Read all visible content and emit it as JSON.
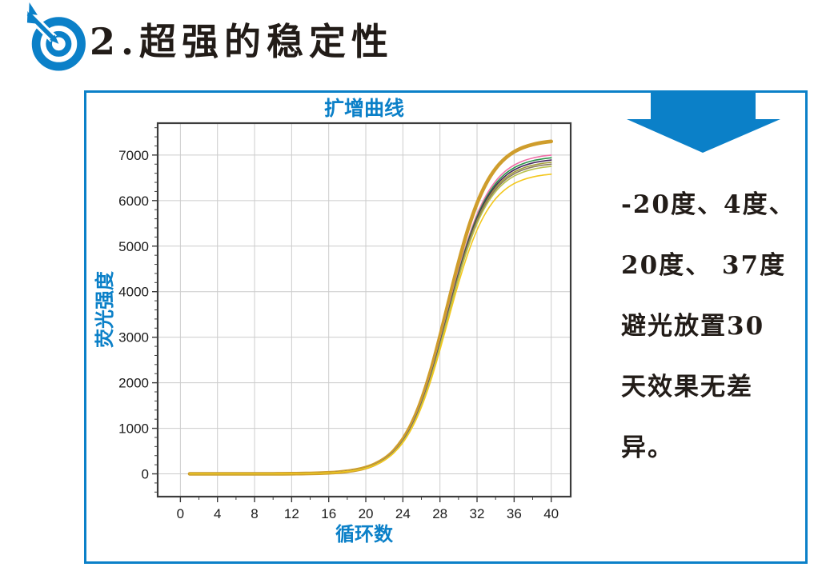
{
  "header": {
    "title": "2.超强的稳定性"
  },
  "colors": {
    "accent_blue": "#0b80c8",
    "ink_black": "#221c18",
    "grid_line": "#cccccc",
    "plot_frame": "#3c3c3c",
    "tick_label": "#1c1c1c"
  },
  "annotation": {
    "arrow_icon": "down-arrow-icon",
    "lines": [
      "-20度、4度、",
      "20度、 37度",
      "避光放置30",
      "天效果无差",
      "异。"
    ]
  },
  "chart_data": {
    "type": "line",
    "title": "扩增曲线",
    "xlabel": "循环数",
    "ylabel": "荧光强度",
    "x_ticks": [
      0,
      4,
      8,
      12,
      16,
      20,
      24,
      28,
      32,
      36,
      40
    ],
    "y_ticks": [
      0,
      1000,
      2000,
      3000,
      4000,
      5000,
      6000,
      7000
    ],
    "xlim": [
      -2.45,
      42.1
    ],
    "ylim": [
      -500,
      7700
    ],
    "minor_x_step": 2,
    "minor_y_step": 200,
    "grid": true,
    "legend": "none",
    "cycles": [
      1,
      2,
      3,
      4,
      5,
      6,
      7,
      8,
      9,
      10,
      11,
      12,
      13,
      14,
      15,
      16,
      17,
      18,
      19,
      20,
      21,
      22,
      23,
      24,
      25,
      26,
      27,
      28,
      29,
      30,
      31,
      32,
      33,
      34,
      35,
      36,
      37,
      38,
      39,
      40
    ],
    "series": [
      {
        "name": "curve-1",
        "color": "#cf9d2c",
        "width": 4.6,
        "values": [
          0,
          0,
          0,
          0,
          0,
          0,
          0,
          0,
          0,
          0,
          2,
          4,
          6,
          9,
          15,
          23,
          36,
          57,
          88,
          137,
          214,
          329,
          503,
          760,
          1125,
          1624,
          2262,
          3020,
          3839,
          4642,
          5356,
          5940,
          6382,
          6701,
          6922,
          7070,
          7168,
          7232,
          7273,
          7300
        ]
      },
      {
        "name": "curve-2",
        "color": "#f06fa8",
        "width": 1.6,
        "values": [
          0,
          0,
          0,
          0,
          0,
          0,
          0,
          0,
          0,
          0,
          2,
          4,
          6,
          9,
          14,
          22,
          35,
          55,
          84,
          131,
          205,
          315,
          482,
          729,
          1079,
          1557,
          2169,
          2896,
          3681,
          4451,
          5136,
          5696,
          6120,
          6426,
          6637,
          6779,
          6873,
          6934,
          6974,
          7000
        ]
      },
      {
        "name": "curve-3",
        "color": "#2a9447",
        "width": 1.6,
        "values": [
          0,
          0,
          0,
          0,
          0,
          0,
          0,
          0,
          0,
          0,
          2,
          4,
          6,
          9,
          14,
          22,
          34,
          54,
          84,
          130,
          203,
          313,
          478,
          723,
          1070,
          1544,
          2150,
          2871,
          3650,
          4413,
          5092,
          5647,
          6067,
          6371,
          6581,
          6721,
          6814,
          6875,
          6914,
          6940
        ]
      },
      {
        "name": "curve-4",
        "color": "#45265e",
        "width": 1.6,
        "values": [
          0,
          0,
          0,
          0,
          0,
          0,
          0,
          0,
          0,
          0,
          2,
          4,
          6,
          9,
          14,
          22,
          34,
          54,
          83,
          129,
          202,
          310,
          475,
          717,
          1062,
          1533,
          2135,
          2850,
          3623,
          4381,
          5055,
          5606,
          6023,
          6324,
          6533,
          6673,
          6765,
          6826,
          6864,
          6890
        ]
      },
      {
        "name": "curve-5",
        "color": "#9f9a36",
        "width": 1.6,
        "values": [
          0,
          0,
          0,
          0,
          0,
          0,
          0,
          0,
          0,
          0,
          2,
          4,
          6,
          9,
          14,
          22,
          34,
          53,
          83,
          128,
          201,
          308,
          471,
          712,
          1054,
          1522,
          2120,
          2830,
          3597,
          4350,
          5019,
          5566,
          5980,
          6279,
          6486,
          6625,
          6716,
          6776,
          6815,
          6840
        ]
      },
      {
        "name": "curve-6",
        "color": "#8b7a5f",
        "width": 1.6,
        "values": [
          0,
          0,
          0,
          0,
          0,
          0,
          0,
          0,
          0,
          0,
          2,
          4,
          6,
          9,
          14,
          21,
          34,
          53,
          82,
          128,
          199,
          306,
          469,
          708,
          1048,
          1513,
          2107,
          2813,
          3576,
          4324,
          4989,
          5533,
          5945,
          6242,
          6448,
          6586,
          6677,
          6737,
          6775,
          6800
        ]
      },
      {
        "name": "curve-7",
        "color": "#b8c14b",
        "width": 1.6,
        "values": [
          0,
          0,
          0,
          0,
          0,
          0,
          0,
          0,
          0,
          0,
          2,
          4,
          6,
          9,
          14,
          21,
          33,
          53,
          81,
          127,
          198,
          304,
          465,
          703,
          1040,
          1502,
          2092,
          2792,
          3550,
          4292,
          4952,
          5492,
          5901,
          6196,
          6400,
          6537,
          6627,
          6687,
          6725,
          6750
        ]
      },
      {
        "name": "curve-8",
        "color": "#f3c71d",
        "width": 1.6,
        "values": [
          0,
          0,
          0,
          0,
          0,
          0,
          0,
          0,
          0,
          0,
          2,
          3,
          5,
          8,
          13,
          21,
          32,
          51,
          79,
          123,
          193,
          297,
          453,
          685,
          1014,
          1464,
          2039,
          2722,
          3460,
          4184,
          4827,
          5354,
          5752,
          6040,
          6239,
          6372,
          6460,
          6518,
          6556,
          6580
        ]
      }
    ]
  }
}
